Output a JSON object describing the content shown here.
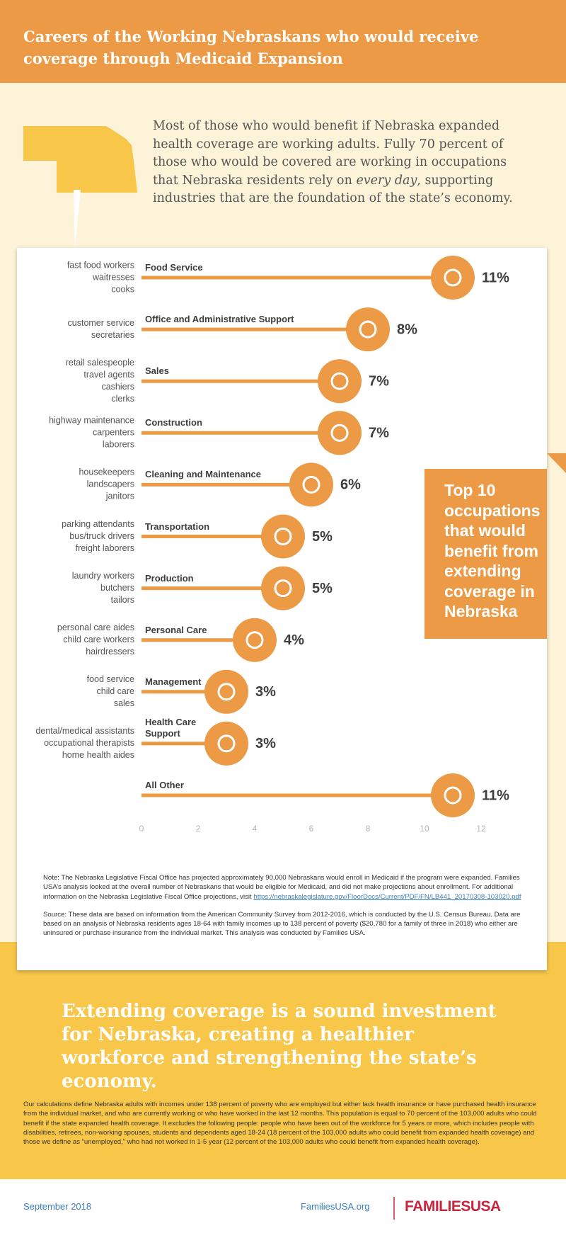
{
  "header": {
    "title": "Careers of the Working Nebraskans who would receive coverage through Medicaid Expansion"
  },
  "intro": {
    "before": "Most of those who would benefit if Nebraska expanded health coverage are working adults. Fully 70 percent of those who would be covered are working in occupations that Nebraska residents rely on ",
    "emphasis": "every day",
    "after": ", supporting industries that are the foundation of the state’s economy."
  },
  "chart_data": {
    "type": "bar",
    "horizontal": true,
    "color": "#ec9a45",
    "categories": [
      "Food Service",
      "Office and Administrative Support",
      "Sales",
      "Construction",
      "Cleaning and Maintenance",
      "Transportation",
      "Production",
      "Personal Care",
      "Management",
      "Health Care Support",
      "All Other"
    ],
    "examples": [
      [
        "fast food workers",
        "waitresses",
        "cooks"
      ],
      [
        "customer service",
        "secretaries"
      ],
      [
        "retail salespeople",
        "travel agents",
        "cashiers",
        "clerks"
      ],
      [
        "highway maintenance",
        "carpenters",
        "laborers"
      ],
      [
        "housekeepers",
        "landscapers",
        "janitors"
      ],
      [
        "parking attendants",
        "bus/truck drivers",
        "freight laborers"
      ],
      [
        "laundry workers",
        "butchers",
        "tailors"
      ],
      [
        "personal care aides",
        "child care workers",
        "hairdressers"
      ],
      [
        "food service",
        "child care",
        "sales"
      ],
      [
        "dental/medical assistants",
        "occupational therapists",
        "home health aides"
      ],
      []
    ],
    "values": [
      11,
      8,
      7,
      7,
      6,
      5,
      5,
      4,
      3,
      3,
      11
    ],
    "value_labels": [
      "11%",
      "8%",
      "7%",
      "7%",
      "6%",
      "5%",
      "5%",
      "4%",
      "3%",
      "3%",
      "11%"
    ],
    "xlim": [
      0,
      12
    ],
    "xticks": [
      0,
      2,
      4,
      6,
      8,
      10,
      12
    ]
  },
  "callout": {
    "text": "Top 10 occupations that would benefit from extending coverage in Nebraska"
  },
  "notes": {
    "note": "Note: The Nebraska Legislative Fiscal Office has projected approximately 90,000 Nebraskans would enroll in Medicaid if the program were expanded. Families USA’s analysis looked at the overall number of Nebraskans that would be eligible for Medicaid, and did not make projections about enrollment. For additional information on the Nebraska Legislative Fiscal Office projections, visit ",
    "note_link": "https://nebraskalegislature.gov/FloorDocs/Current/PDF/FN/LB441_20170308-103020.pdf",
    "source": "Source: These data are based on information from the American Community Survey from 2012-2016, which is conducted by the U.S. Census Bureau. Data are based on an analysis of Nebraska residents ages 18-64 with family incomes up to 138 percent of poverty ($20,780 for a family of three in 2018) who either are uninsured or purchase insurance from the individual market. This analysis was conducted by Families USA."
  },
  "statement": "Extending coverage is a sound investment for Nebraska, creating a healthier workforce and strengthening the state’s economy.",
  "footnote": "Our calculations define Nebraska adults with incomes under 138 percent of poverty who are employed but either lack health insurance or have purchased health insurance from the individual market, and who are currently working or who have worked in the last 12 months. This population is equal to 70 percent of the 103,000 adults who could benefit if the state expanded health coverage. It excludes the following people: people who have been out of the workforce for 5 years or more, which includes people with disabilities, retirees, non-working spouses, students and dependents aged 18-24 (18 percent of the 103,000 adults who could benefit from expanded health coverage) and those we define as “unemployed,” who had not worked in 1-5 year (12 percent of the 103,000 adults who could benefit from expanded health coverage).",
  "footer": {
    "date": "September 2018",
    "website": "FamiliesUSA.org",
    "logo": "FAMILIESUSA"
  }
}
